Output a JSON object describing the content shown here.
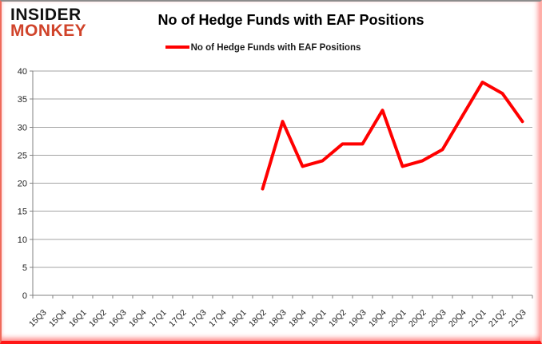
{
  "logo": {
    "line1": "INSIDER",
    "line2": "MONKEY"
  },
  "title": "No of Hedge Funds with EAF Positions",
  "legend": {
    "label": "No of Hedge Funds with EAF Positions",
    "swatch_color": "#ff0000"
  },
  "colors": {
    "line": "#ff0000",
    "grid": "#a3a3a3",
    "axis": "#808080",
    "label_text": "#1f1f1f",
    "title_text": "#000000",
    "logo_black": "#111111",
    "logo_red": "#d0432a",
    "frame_red": "#ff1616",
    "frame_gray": "#8c8c8c"
  },
  "chart_data": {
    "type": "line",
    "title": "No of Hedge Funds with EAF Positions",
    "xlabel": "",
    "ylabel": "",
    "ylim": [
      0,
      40
    ],
    "yticks": [
      0,
      5,
      10,
      15,
      20,
      25,
      30,
      35,
      40
    ],
    "grid": true,
    "legend_position": "top",
    "categories": [
      "15Q3",
      "15Q4",
      "16Q1",
      "16Q2",
      "16Q3",
      "16Q4",
      "17Q1",
      "17Q2",
      "17Q3",
      "17Q4",
      "18Q1",
      "18Q2",
      "18Q3",
      "18Q4",
      "19Q1",
      "19Q2",
      "19Q3",
      "19Q4",
      "20Q1",
      "20Q2",
      "20Q3",
      "20Q4",
      "21Q1",
      "21Q2",
      "21Q3"
    ],
    "series": [
      {
        "name": "No of Hedge Funds with EAF Positions",
        "color": "#ff0000",
        "values": [
          null,
          null,
          null,
          null,
          null,
          null,
          null,
          null,
          null,
          null,
          null,
          19,
          31,
          23,
          24,
          27,
          27,
          33,
          23,
          24,
          26,
          32,
          38,
          36,
          31
        ]
      }
    ]
  }
}
